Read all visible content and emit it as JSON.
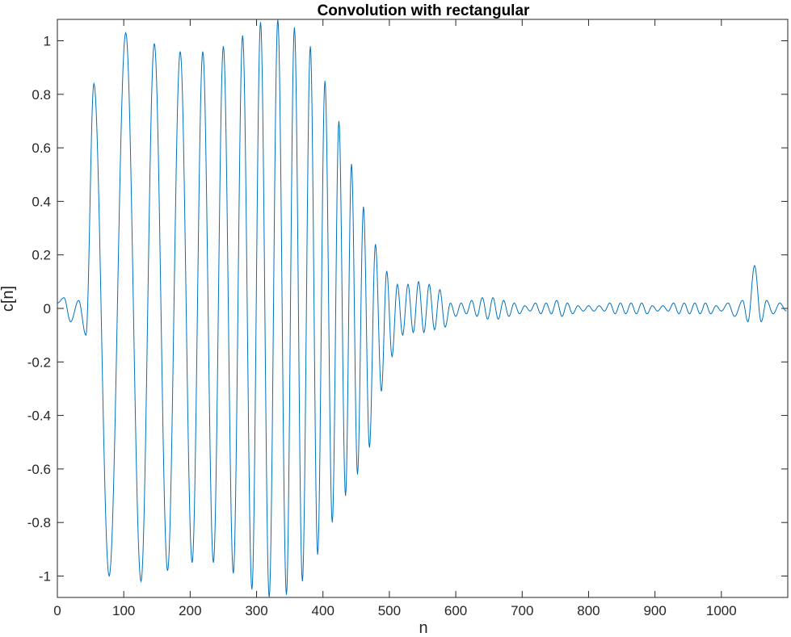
{
  "chart_data": {
    "type": "line",
    "title": "Convolution with rectangular",
    "xlabel": "n",
    "ylabel": "c[n]",
    "xlim": [
      0,
      1100
    ],
    "ylim": [
      -1.08,
      1.08
    ],
    "xticks": [
      0,
      100,
      200,
      300,
      400,
      500,
      600,
      700,
      800,
      900,
      1000
    ],
    "xtick_labels": [
      "0",
      "100",
      "200",
      "300",
      "400",
      "500",
      "600",
      "700",
      "800",
      "900",
      "1000"
    ],
    "yticks": [
      -1,
      -0.8,
      -0.6,
      -0.4,
      -0.2,
      0,
      0.2,
      0.4,
      0.6,
      0.8,
      1
    ],
    "ytick_labels": [
      "-1",
      "-0.8",
      "-0.6",
      "-0.4",
      "-0.2",
      "0",
      "0.2",
      "0.4",
      "0.6",
      "0.8",
      "1"
    ],
    "grid": false,
    "series": [
      {
        "color": "#0072BD",
        "x": [
          0,
          10,
          20,
          32,
          43,
          55,
          78,
          103,
          126,
          146,
          166,
          185,
          203,
          219,
          235,
          250,
          265,
          279,
          293,
          306,
          319,
          332,
          345,
          357,
          369,
          381,
          392,
          403,
          414,
          424,
          434,
          443,
          452,
          461,
          470,
          479,
          488,
          496,
          504,
          512,
          520,
          528,
          536,
          544,
          552,
          560,
          568,
          576,
          584,
          592,
          600,
          608,
          616,
          624,
          632,
          640,
          648,
          656,
          664,
          672,
          680,
          688,
          696,
          704,
          712,
          720,
          728,
          736,
          744,
          752,
          760,
          768,
          776,
          784,
          792,
          800,
          808,
          816,
          824,
          832,
          840,
          848,
          856,
          864,
          872,
          880,
          888,
          896,
          904,
          912,
          920,
          928,
          936,
          944,
          952,
          960,
          968,
          976,
          984,
          992,
          1000,
          1010,
          1020,
          1032,
          1040,
          1050,
          1060,
          1068,
          1078,
          1088,
          1098
        ],
        "y": [
          0.02,
          0.04,
          -0.05,
          0.03,
          -0.1,
          0.84,
          -1.0,
          1.03,
          -1.02,
          0.99,
          -0.98,
          0.96,
          -0.95,
          0.96,
          -0.95,
          0.98,
          -0.99,
          1.02,
          -1.05,
          1.07,
          -1.08,
          1.08,
          -1.07,
          1.05,
          -1.02,
          0.98,
          -0.92,
          0.85,
          -0.8,
          0.7,
          -0.7,
          0.54,
          -0.62,
          0.38,
          -0.52,
          0.24,
          -0.31,
          0.14,
          -0.18,
          0.09,
          -0.1,
          0.09,
          -0.09,
          0.1,
          -0.09,
          0.09,
          -0.08,
          0.07,
          -0.07,
          0.02,
          -0.03,
          0.02,
          -0.02,
          0.03,
          -0.03,
          0.04,
          -0.04,
          0.04,
          -0.04,
          0.03,
          -0.03,
          0.02,
          -0.02,
          0.01,
          -0.01,
          0.02,
          -0.02,
          0.02,
          -0.02,
          0.03,
          -0.03,
          0.02,
          -0.02,
          0.01,
          -0.01,
          0.01,
          -0.01,
          0.01,
          -0.01,
          0.02,
          -0.02,
          0.02,
          -0.02,
          0.02,
          -0.02,
          0.02,
          -0.02,
          0.01,
          -0.01,
          0.01,
          -0.01,
          0.02,
          -0.02,
          0.02,
          -0.02,
          0.02,
          -0.02,
          0.02,
          -0.02,
          0.01,
          -0.01,
          0.02,
          -0.03,
          0.03,
          -0.05,
          0.16,
          -0.05,
          0.03,
          -0.02,
          0.02,
          -0.01
        ]
      }
    ]
  }
}
